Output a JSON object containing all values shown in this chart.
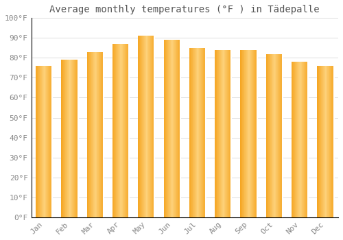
{
  "title": "Average monthly temperatures (°F ) in Tädepalle",
  "months": [
    "Jan",
    "Feb",
    "Mar",
    "Apr",
    "May",
    "Jun",
    "Jul",
    "Aug",
    "Sep",
    "Oct",
    "Nov",
    "Dec"
  ],
  "values": [
    76,
    79,
    83,
    87,
    91,
    89,
    85,
    84,
    84,
    82,
    78,
    76
  ],
  "bar_color_main": "#F5A623",
  "bar_color_light": "#FDD17A",
  "background_color": "#FFFFFF",
  "ylim": [
    0,
    100
  ],
  "ytick_step": 10,
  "grid_color": "#DDDDDD",
  "title_fontsize": 10,
  "tick_fontsize": 8,
  "tick_color": "#888888",
  "spine_color": "#000000",
  "figsize": [
    5.0,
    3.5
  ],
  "dpi": 100
}
